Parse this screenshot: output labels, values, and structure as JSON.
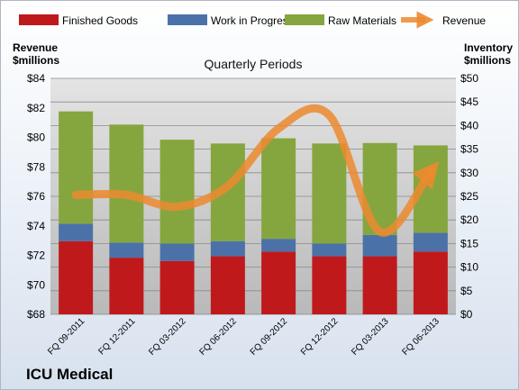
{
  "company": "ICU Medical",
  "chart_data": {
    "type": "bar",
    "title": "Quarterly Periods",
    "categories": [
      "FQ 09-2011",
      "FQ 12-2011",
      "FQ 03-2012",
      "FQ 06-2012",
      "FQ 09-2012",
      "FQ 12-2012",
      "FQ 03-2013",
      "FQ 06-2013"
    ],
    "series": [
      {
        "name": "Finished Goods",
        "type": "stacked-bar",
        "axis": "right",
        "color": "#c0191c",
        "values": [
          15.5,
          12.0,
          11.3,
          12.3,
          13.3,
          12.3,
          12.3,
          13.3
        ]
      },
      {
        "name": "Work in Progress",
        "type": "stacked-bar",
        "axis": "right",
        "color": "#4b72a8",
        "values": [
          3.7,
          3.2,
          3.7,
          3.2,
          2.7,
          2.7,
          4.5,
          4.0
        ]
      },
      {
        "name": "Raw Materials",
        "type": "stacked-bar",
        "axis": "right",
        "color": "#85a63e",
        "values": [
          23.8,
          25.0,
          22.0,
          20.7,
          21.3,
          21.2,
          19.5,
          18.5
        ]
      },
      {
        "name": "Revenue",
        "type": "line",
        "axis": "left",
        "color": "#ec8a2f",
        "values": [
          76.1,
          76.1,
          75.3,
          76.7,
          80.6,
          81.5,
          73.6,
          77.7
        ]
      }
    ],
    "left_axis": {
      "label_line1": "Revenue",
      "label_line2": "$millions",
      "min": 68,
      "max": 84,
      "step": 2,
      "ticks": [
        "$68",
        "$70",
        "$72",
        "$74",
        "$76",
        "$78",
        "$80",
        "$82",
        "$84"
      ]
    },
    "right_axis": {
      "label_line1": "Inventory",
      "label_line2": "$millions",
      "min": 0,
      "max": 50,
      "step": 5,
      "ticks": [
        "$0",
        "$5",
        "$10",
        "$15",
        "$20",
        "$25",
        "$30",
        "$35",
        "$40",
        "$45",
        "$50"
      ]
    },
    "legend_position": "top",
    "grid": "horizontal"
  }
}
